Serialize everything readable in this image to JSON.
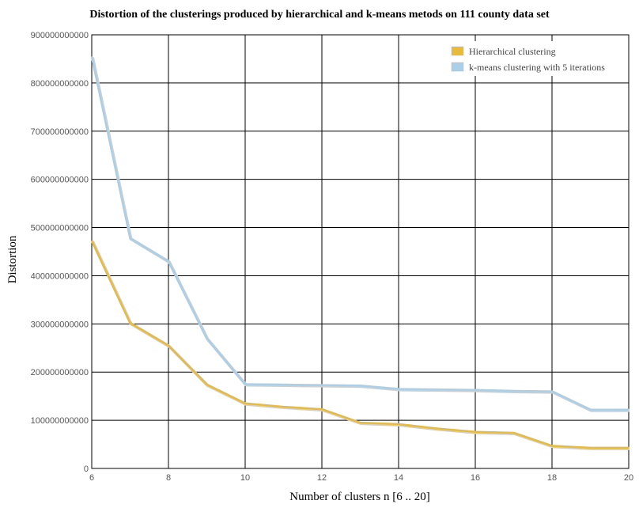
{
  "chart_data": {
    "type": "line",
    "title": "Distortion of the clusterings produced by hierarchical and k-means metods on 111 county data set",
    "xlabel": "Number of clusters n [6 .. 20]",
    "ylabel": "Distortion",
    "xlim": [
      6,
      20
    ],
    "ylim": [
      0,
      900000000000
    ],
    "xticks": [
      6,
      8,
      10,
      12,
      14,
      16,
      18,
      20
    ],
    "yticks": [
      0,
      100000000000,
      200000000000,
      300000000000,
      400000000000,
      500000000000,
      600000000000,
      700000000000,
      800000000000,
      900000000000
    ],
    "xtick_labels": [
      "6",
      "8",
      "10",
      "12",
      "14",
      "16",
      "18",
      "20"
    ],
    "ytick_labels": [
      "0",
      "100000000000",
      "200000000000",
      "300000000000",
      "400000000000",
      "500000000000",
      "600000000000",
      "700000000000",
      "800000000000",
      "900000000000"
    ],
    "grid": true,
    "legend_position": "top-right",
    "x": [
      6,
      7,
      8,
      9,
      10,
      11,
      12,
      13,
      14,
      15,
      16,
      17,
      18,
      19,
      20
    ],
    "series": [
      {
        "name": "Hierarchical clustering",
        "color": "#e8bb3a",
        "values": [
          473000000000,
          302000000000,
          255000000000,
          174000000000,
          135000000000,
          128000000000,
          123000000000,
          95000000000,
          92000000000,
          83000000000,
          76000000000,
          74000000000,
          47000000000,
          43000000000,
          43000000000
        ]
      },
      {
        "name": "k-means clustering with 5 iterations",
        "color": "#a9cfe9",
        "values": [
          855000000000,
          478000000000,
          430000000000,
          270000000000,
          175000000000,
          174000000000,
          173000000000,
          172000000000,
          165000000000,
          164000000000,
          163000000000,
          161000000000,
          160000000000,
          122000000000,
          122000000000
        ]
      }
    ]
  }
}
